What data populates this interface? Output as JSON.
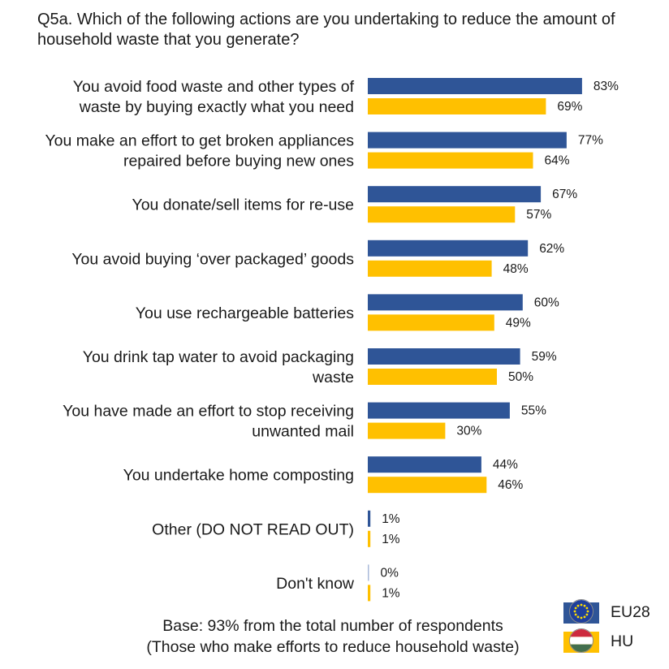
{
  "title": "Q5a. Which of the following actions are you undertaking to reduce the amount of household waste that you generate?",
  "footnote": {
    "line1": "Base: 93% from the total number of respondents",
    "line2": "(Those who make efforts to reduce household waste)"
  },
  "legend": {
    "items": [
      {
        "label": "EU28",
        "color": "#2f5597",
        "icon": "eu-flag-icon"
      },
      {
        "label": "HU",
        "color": "#ffc000",
        "icon": "hungary-flag-icon"
      }
    ]
  },
  "chart_data": {
    "type": "bar",
    "orientation": "horizontal",
    "title": "Q5a. Which of the following actions are you undertaking to reduce the amount of household waste that you generate?",
    "categories": [
      [
        "You avoid food waste and other types of",
        "waste by buying exactly what you need"
      ],
      [
        "You make an effort to get broken appliances",
        "repaired before buying new ones"
      ],
      [
        "You donate/sell items for re-use"
      ],
      [
        "You avoid buying ‘over packaged’ goods"
      ],
      [
        "You use rechargeable batteries"
      ],
      [
        "You drink tap water to avoid packaging",
        "waste"
      ],
      [
        "You have made an effort to stop receiving",
        "unwanted mail"
      ],
      [
        "You undertake home composting"
      ],
      [
        "Other (DO NOT READ OUT)"
      ],
      [
        "Don't know"
      ]
    ],
    "series": [
      {
        "name": "EU28",
        "color": "#2f5597",
        "values": [
          83,
          77,
          67,
          62,
          60,
          59,
          55,
          44,
          1,
          0
        ]
      },
      {
        "name": "HU",
        "color": "#ffc000",
        "values": [
          69,
          64,
          57,
          48,
          49,
          50,
          30,
          46,
          1,
          1
        ]
      }
    ],
    "value_suffix": "%",
    "xlim": [
      0,
      100
    ],
    "grid": false,
    "legend_position": "bottom-right"
  }
}
